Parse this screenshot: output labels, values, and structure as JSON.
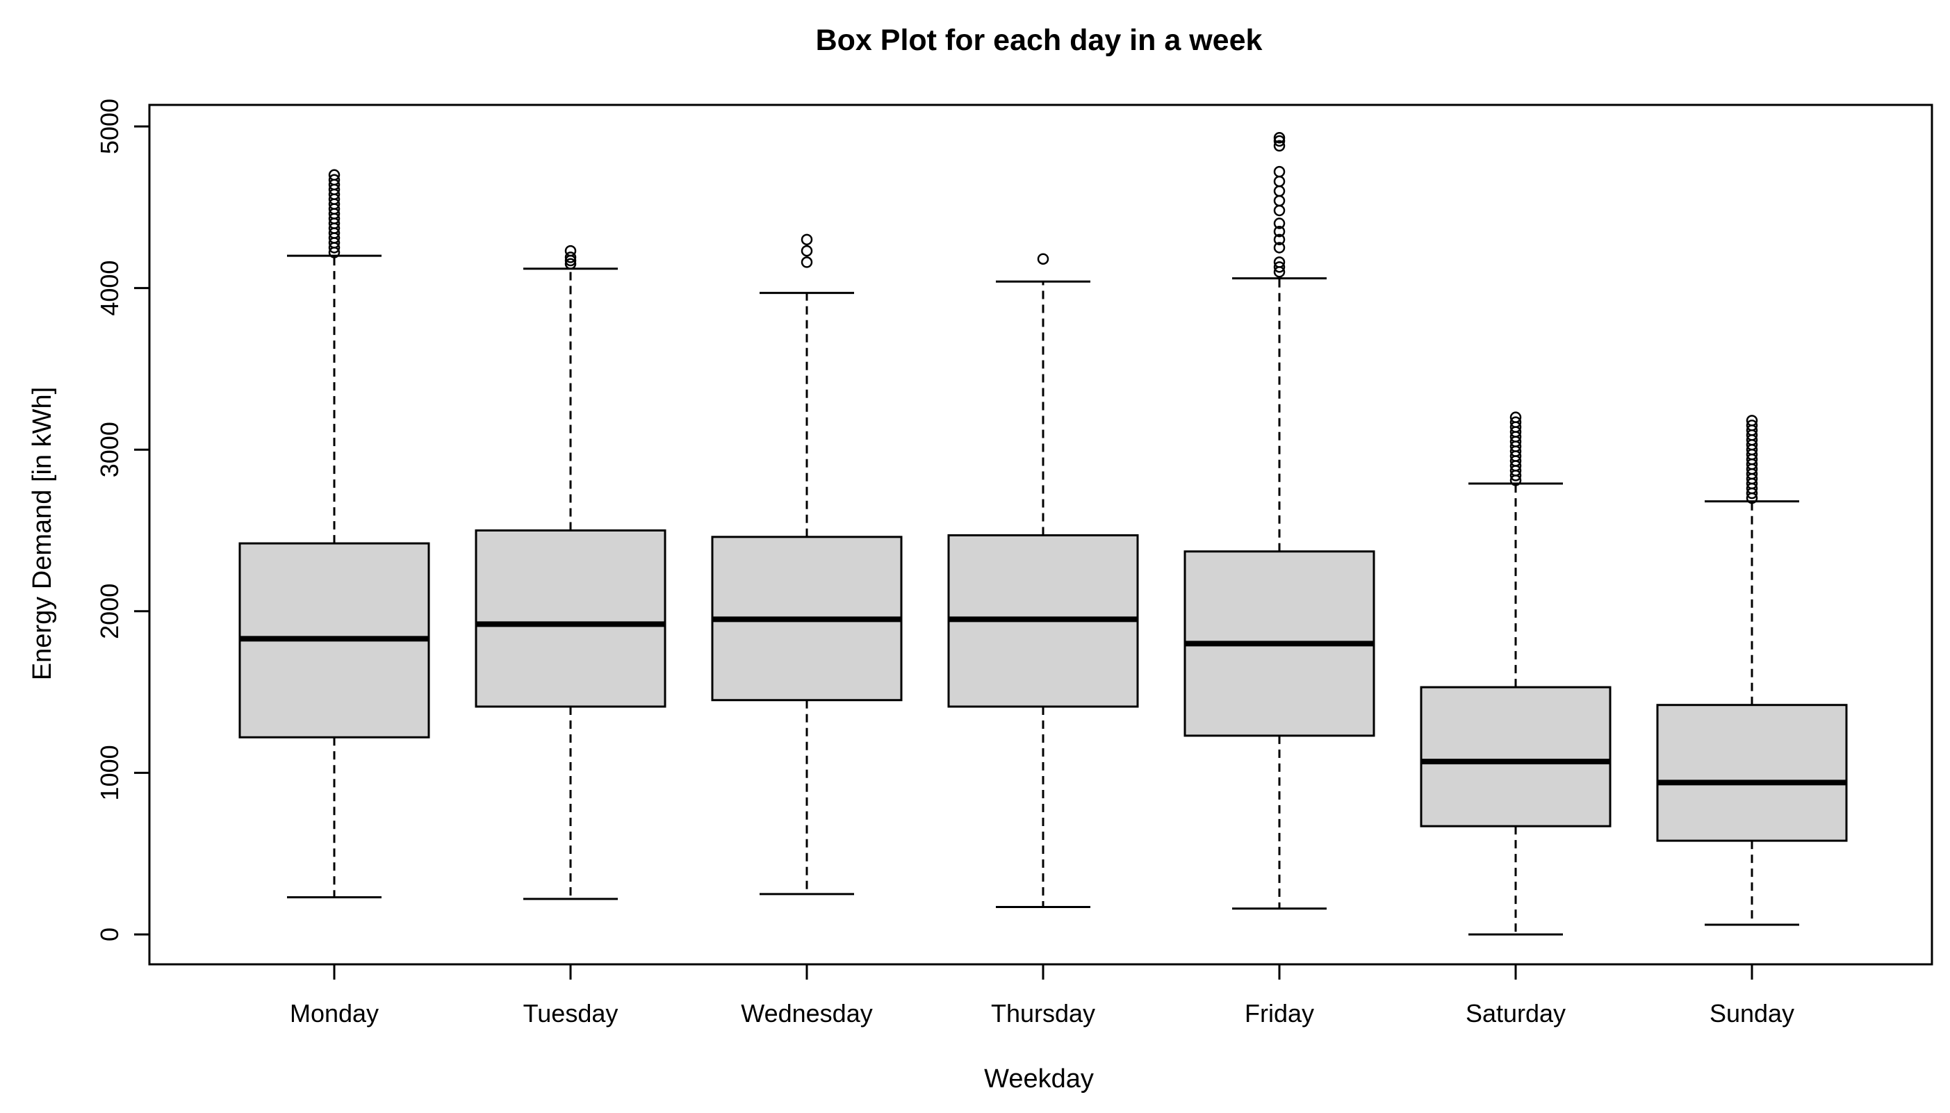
{
  "chart_data": {
    "type": "boxplot",
    "title": "Box Plot for each day in a week",
    "xlabel": "Weekday",
    "ylabel": "Energy Demand [in kWh]",
    "ylim": [
      -200,
      5100
    ],
    "yticks": [
      0,
      1000,
      2000,
      3000,
      4000,
      5000
    ],
    "ytick_labels": [
      "0",
      "1000",
      "2000",
      "3000",
      "4000",
      "5000"
    ],
    "grid": false,
    "box_fill": "#d3d3d3",
    "categories": [
      "Monday",
      "Tuesday",
      "Wednesday",
      "Thursday",
      "Friday",
      "Saturday",
      "Sunday"
    ],
    "series": [
      {
        "name": "Monday",
        "whisker_low": 230,
        "q1": 1220,
        "median": 1830,
        "q3": 2420,
        "whisker_high": 4200,
        "outliers": [
          4220,
          4250,
          4280,
          4310,
          4340,
          4370,
          4400,
          4430,
          4460,
          4490,
          4520,
          4550,
          4580,
          4610,
          4640,
          4670,
          4700
        ]
      },
      {
        "name": "Tuesday",
        "whisker_low": 220,
        "q1": 1410,
        "median": 1920,
        "q3": 2500,
        "whisker_high": 4120,
        "outliers": [
          4150,
          4170,
          4190,
          4230
        ]
      },
      {
        "name": "Wednesday",
        "whisker_low": 250,
        "q1": 1450,
        "median": 1950,
        "q3": 2460,
        "whisker_high": 3970,
        "outliers": [
          4160,
          4230,
          4300
        ]
      },
      {
        "name": "Thursday",
        "whisker_low": 170,
        "q1": 1410,
        "median": 1950,
        "q3": 2470,
        "whisker_high": 4040,
        "outliers": [
          4180
        ]
      },
      {
        "name": "Friday",
        "whisker_low": 160,
        "q1": 1230,
        "median": 1800,
        "q3": 2370,
        "whisker_high": 4060,
        "outliers": [
          4100,
          4130,
          4160,
          4250,
          4300,
          4350,
          4400,
          4480,
          4540,
          4600,
          4660,
          4720,
          4880,
          4910,
          4930
        ]
      },
      {
        "name": "Saturday",
        "whisker_low": 0,
        "q1": 670,
        "median": 1070,
        "q3": 1530,
        "whisker_high": 2790,
        "outliers": [
          2810,
          2840,
          2870,
          2900,
          2930,
          2960,
          2990,
          3020,
          3050,
          3080,
          3110,
          3140,
          3170,
          3200
        ]
      },
      {
        "name": "Sunday",
        "whisker_low": 60,
        "q1": 580,
        "median": 940,
        "q3": 1420,
        "whisker_high": 2680,
        "outliers": [
          2700,
          2730,
          2760,
          2790,
          2820,
          2850,
          2880,
          2910,
          2940,
          2970,
          3000,
          3030,
          3060,
          3090,
          3120,
          3150,
          3180
        ]
      }
    ]
  }
}
